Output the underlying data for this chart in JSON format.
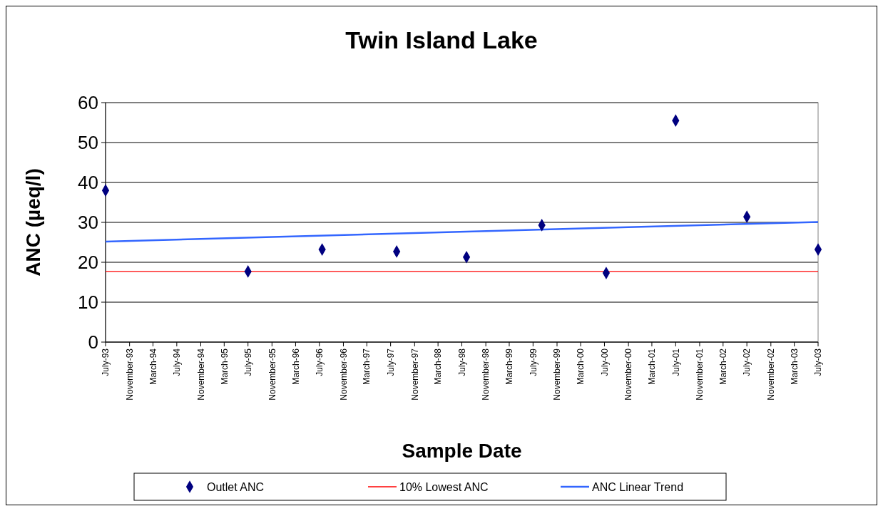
{
  "chart_data": {
    "type": "scatter",
    "title": "Twin Island Lake",
    "xlabel": "Sample Date",
    "ylabel": "ANC (µeq/l)",
    "xlim": [
      "1993-07-01",
      "2003-07-01"
    ],
    "xticks": [
      {
        "value": "1993-07-01",
        "label": "July-93"
      },
      {
        "value": "1993-11-01",
        "label": "November-93"
      },
      {
        "value": "1994-03-01",
        "label": "March-94"
      },
      {
        "value": "1994-07-01",
        "label": "July-94"
      },
      {
        "value": "1994-11-01",
        "label": "November-94"
      },
      {
        "value": "1995-03-01",
        "label": "March-95"
      },
      {
        "value": "1995-07-01",
        "label": "July-95"
      },
      {
        "value": "1995-11-01",
        "label": "November-95"
      },
      {
        "value": "1996-03-01",
        "label": "March-96"
      },
      {
        "value": "1996-07-01",
        "label": "July-96"
      },
      {
        "value": "1996-11-01",
        "label": "November-96"
      },
      {
        "value": "1997-03-01",
        "label": "March-97"
      },
      {
        "value": "1997-07-01",
        "label": "July-97"
      },
      {
        "value": "1997-11-01",
        "label": "November-97"
      },
      {
        "value": "1998-03-01",
        "label": "March-98"
      },
      {
        "value": "1998-07-01",
        "label": "July-98"
      },
      {
        "value": "1998-11-01",
        "label": "November-98"
      },
      {
        "value": "1999-03-01",
        "label": "March-99"
      },
      {
        "value": "1999-07-01",
        "label": "July-99"
      },
      {
        "value": "1999-11-01",
        "label": "November-99"
      },
      {
        "value": "2000-03-01",
        "label": "March-00"
      },
      {
        "value": "2000-07-01",
        "label": "July-00"
      },
      {
        "value": "2000-11-01",
        "label": "November-00"
      },
      {
        "value": "2001-03-01",
        "label": "March-01"
      },
      {
        "value": "2001-07-01",
        "label": "July-01"
      },
      {
        "value": "2001-11-01",
        "label": "November-01"
      },
      {
        "value": "2002-03-01",
        "label": "March-02"
      },
      {
        "value": "2002-07-01",
        "label": "July-02"
      },
      {
        "value": "2002-11-01",
        "label": "November-02"
      },
      {
        "value": "2003-03-01",
        "label": "March-03"
      },
      {
        "value": "2003-07-01",
        "label": "July-03"
      }
    ],
    "ylim": [
      0,
      60
    ],
    "yticks": [
      0,
      10,
      20,
      30,
      40,
      50,
      60
    ],
    "grid": "y",
    "legend": "bottom",
    "series": [
      {
        "name": "Outlet ANC",
        "marker": "diamond",
        "color": "#000080",
        "x": [
          "1993-07-01",
          "1995-07-01",
          "1996-07-15",
          "1997-08-01",
          "1998-07-25",
          "1999-08-15",
          "2000-07-10",
          "2001-07-01",
          "2002-07-01",
          "2003-07-01"
        ],
        "values": [
          38,
          17.7,
          23.2,
          22.7,
          21.3,
          29.3,
          17.3,
          55.5,
          31.4,
          23.2
        ]
      },
      {
        "name": "ANC Linear Trend",
        "type": "line",
        "marker": "none",
        "color": "#3366ff",
        "x": [
          "1993-07-01",
          "2003-07-01"
        ],
        "values": [
          25.2,
          30.1
        ]
      }
    ],
    "ref_lines": [
      {
        "axis": "y",
        "value": 17.7,
        "label": "10% Lowest ANC",
        "color": "#ff0000"
      }
    ]
  }
}
